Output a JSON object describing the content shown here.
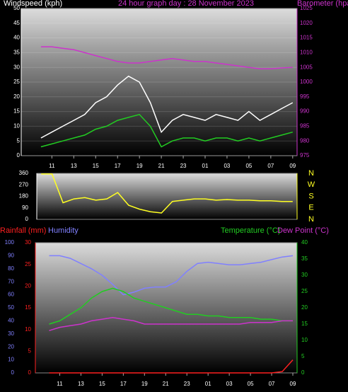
{
  "chart_data": [
    {
      "type": "line",
      "title": "24 hour graph day : 28 November 2023",
      "ylabel": "Windspeed (kph)",
      "y2label": "Barometer (hpa)",
      "x": [
        0,
        1,
        2,
        3,
        4,
        5,
        6,
        7,
        8,
        9,
        10,
        11,
        12,
        13,
        14,
        15,
        16,
        17,
        18,
        19,
        20,
        21,
        22,
        23
      ],
      "xlim": [
        -1.8,
        23.4
      ],
      "xticks": [
        {
          "value": 1,
          "label": "11"
        },
        {
          "value": 3,
          "label": "13"
        },
        {
          "value": 5,
          "label": "15"
        },
        {
          "value": 7,
          "label": "17"
        },
        {
          "value": 9,
          "label": "19"
        },
        {
          "value": 11,
          "label": "21"
        },
        {
          "value": 13,
          "label": "23"
        },
        {
          "value": 15,
          "label": "01"
        },
        {
          "value": 17,
          "label": "03"
        },
        {
          "value": 19,
          "label": "05"
        },
        {
          "value": 21,
          "label": "07"
        },
        {
          "value": 23,
          "label": "09"
        }
      ],
      "ylim": [
        0,
        50
      ],
      "yticks": [
        0,
        5,
        10,
        15,
        20,
        25,
        30,
        35,
        40,
        45,
        50
      ],
      "y2lim": [
        975,
        1025
      ],
      "y2ticks": [
        975,
        980,
        985,
        990,
        995,
        1000,
        1005,
        1010,
        1015,
        1020,
        1025
      ],
      "grid": true,
      "series": [
        {
          "color": "#ffffff",
          "axis": "y",
          "values": [
            6,
            8,
            10,
            12,
            14,
            18,
            20,
            24,
            27,
            25,
            18,
            8,
            12,
            14,
            13,
            12,
            14,
            13,
            12,
            15,
            12,
            14,
            16,
            18
          ]
        },
        {
          "color": "#22cc22",
          "axis": "y",
          "values": [
            3,
            4,
            5,
            6,
            7,
            9,
            10,
            12,
            13,
            14,
            10,
            3,
            5,
            6,
            6,
            5,
            6,
            6,
            5,
            6,
            5,
            6,
            7,
            8
          ]
        },
        {
          "color": "#cc33cc",
          "axis": "y2",
          "values": [
            1012,
            1012,
            1011.5,
            1011,
            1010,
            1009,
            1008,
            1007,
            1006.5,
            1006.5,
            1007,
            1007.5,
            1008,
            1007.5,
            1007,
            1007,
            1006.5,
            1006,
            1005.5,
            1005,
            1004.5,
            1004.5,
            1004.8,
            1005
          ]
        }
      ]
    },
    {
      "type": "line",
      "x": [
        0,
        1,
        2,
        3,
        4,
        5,
        6,
        7,
        8,
        9,
        10,
        11,
        12,
        13,
        14,
        15,
        16,
        17,
        18,
        19,
        20,
        21,
        22,
        23
      ],
      "xlim": [
        -0.4,
        23.4
      ],
      "ylim": [
        0,
        360
      ],
      "yticks": [
        0,
        90,
        180,
        270,
        360
      ],
      "y2lim": [
        0,
        360
      ],
      "y2ticks": [
        {
          "value": 360,
          "label": "N"
        },
        {
          "value": 270,
          "label": "W"
        },
        {
          "value": 180,
          "label": "S"
        },
        {
          "value": 90,
          "label": "E"
        },
        {
          "value": 0,
          "label": "N"
        }
      ],
      "series": [
        {
          "color": "#ffff22",
          "axis": "y",
          "values": [
            355,
            355,
            130,
            160,
            170,
            150,
            160,
            210,
            110,
            80,
            60,
            50,
            140,
            150,
            160,
            160,
            150,
            155,
            150,
            150,
            145,
            145,
            140,
            140
          ]
        }
      ]
    },
    {
      "type": "line",
      "x": [
        0,
        1,
        2,
        3,
        4,
        5,
        6,
        7,
        8,
        9,
        10,
        11,
        12,
        13,
        14,
        15,
        16,
        17,
        18,
        19,
        20,
        21,
        22,
        23
      ],
      "xlim": [
        -1.3,
        23.4
      ],
      "xticks": [
        {
          "value": 1,
          "label": "11"
        },
        {
          "value": 3,
          "label": "13"
        },
        {
          "value": 5,
          "label": "15"
        },
        {
          "value": 7,
          "label": "17"
        },
        {
          "value": 9,
          "label": "19"
        },
        {
          "value": 11,
          "label": "21"
        },
        {
          "value": 13,
          "label": "23"
        },
        {
          "value": 15,
          "label": "01"
        },
        {
          "value": 17,
          "label": "03"
        },
        {
          "value": 19,
          "label": "05"
        },
        {
          "value": 21,
          "label": "07"
        },
        {
          "value": 23,
          "label": "09"
        }
      ],
      "ylim": [
        0,
        30
      ],
      "yticks": [
        0,
        5,
        10,
        15,
        20,
        25,
        30
      ],
      "y2lim": [
        0,
        40
      ],
      "y2ticks": [
        0,
        5,
        10,
        15,
        20,
        25,
        30,
        35,
        40
      ],
      "y3lim": [
        0,
        100
      ],
      "y3ticks": [
        0,
        10,
        20,
        30,
        40,
        50,
        60,
        70,
        80,
        90,
        100
      ],
      "series": [
        {
          "name": "Rainfall (mm)",
          "color": "#ff2020",
          "axis": "y",
          "values": [
            0,
            0,
            0,
            0,
            0,
            0,
            0,
            0,
            0,
            0,
            0,
            0,
            0,
            0,
            0,
            0,
            0,
            0,
            0,
            0,
            0,
            0,
            0.3,
            3
          ]
        },
        {
          "name": "Humidity",
          "color": "#8080ff",
          "axis": "y3",
          "values": [
            90,
            90,
            88,
            84,
            80,
            75,
            68,
            60,
            62,
            65,
            66,
            66,
            70,
            78,
            84,
            85,
            84,
            83,
            83,
            84,
            85,
            87,
            89,
            90
          ]
        },
        {
          "name": "Temperature (°C)",
          "color": "#22cc22",
          "axis": "y2",
          "values": [
            15,
            16,
            18,
            20,
            23,
            25,
            26,
            25,
            23,
            22,
            21,
            20,
            19,
            18,
            18,
            17.5,
            17.5,
            17,
            17,
            17,
            16.5,
            16.5,
            16,
            16
          ]
        },
        {
          "name": "Dew Point (°C)",
          "color": "#cc33cc",
          "axis": "y2",
          "values": [
            13,
            14,
            14.5,
            15,
            16,
            16.5,
            17,
            16.5,
            16,
            15,
            15,
            15,
            15,
            15,
            15,
            15,
            15,
            15,
            15,
            15.5,
            15.5,
            15.5,
            16,
            16
          ]
        }
      ]
    }
  ]
}
